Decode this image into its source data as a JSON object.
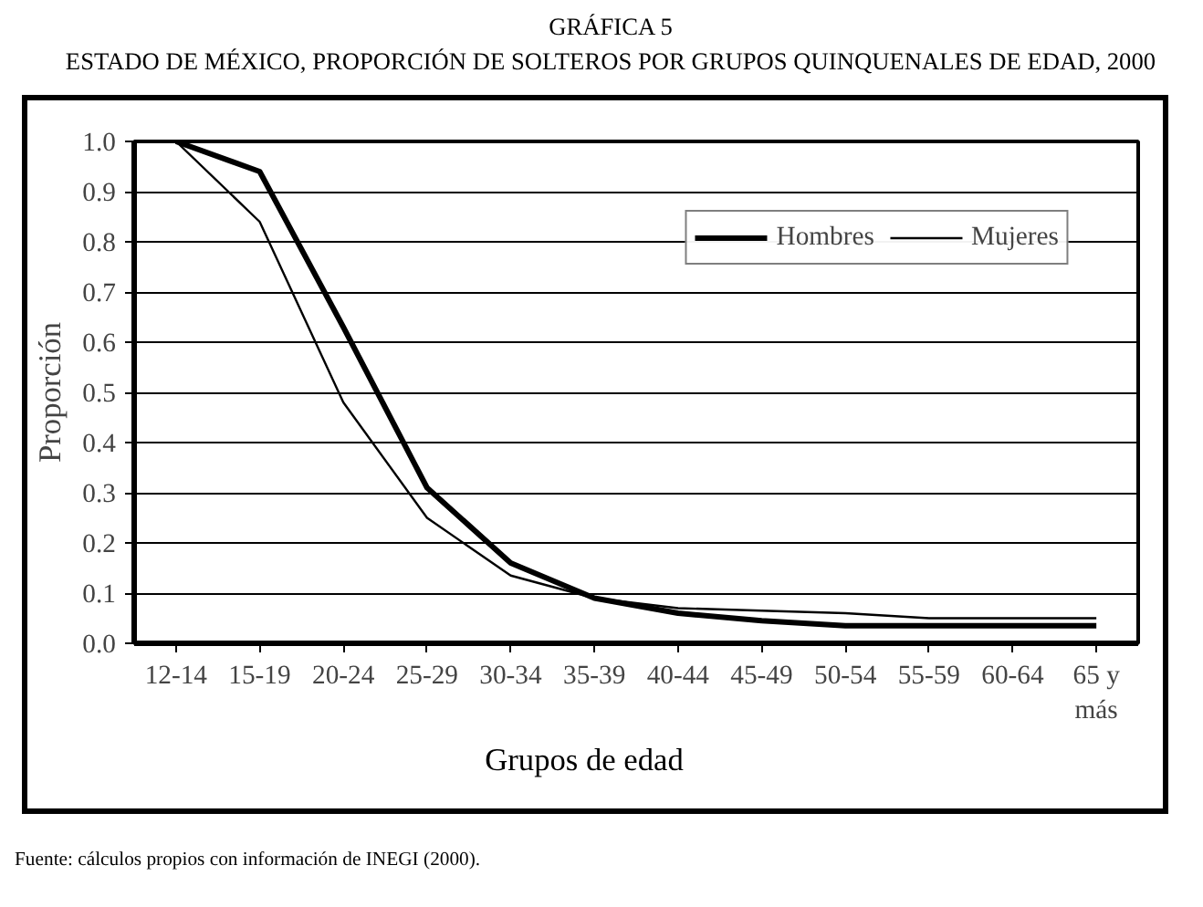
{
  "chart_data": {
    "type": "line",
    "title": "GRÁFICA 5",
    "subtitle": "ESTADO DE MÉXICO, PROPORCIÓN DE SOLTEROS POR GRUPOS QUINQUENALES DE EDAD, 2000",
    "xlabel": "Grupos de edad",
    "ylabel": "Proporción",
    "categories": [
      "12-14",
      "15-19",
      "20-24",
      "25-29",
      "30-34",
      "35-39",
      "40-44",
      "45-49",
      "50-54",
      "55-59",
      "60-64",
      "65 y\nmás"
    ],
    "series": [
      {
        "name": "Hombres",
        "color": "#000000",
        "values": [
          1.0,
          0.94,
          0.63,
          0.31,
          0.16,
          0.09,
          0.06,
          0.045,
          0.035,
          0.035,
          0.035,
          0.035
        ]
      },
      {
        "name": "Mujeres",
        "color": "#000000",
        "values": [
          1.0,
          0.84,
          0.48,
          0.25,
          0.135,
          0.09,
          0.07,
          0.065,
          0.06,
          0.05,
          0.05,
          0.05
        ]
      }
    ],
    "ylim": [
      0,
      1
    ],
    "yticks": [
      {
        "value": 0,
        "label": "0.0"
      },
      {
        "value": 0.1,
        "label": "0.1"
      },
      {
        "value": 0.2,
        "label": "0.2"
      },
      {
        "value": 0.3,
        "label": "0.3"
      },
      {
        "value": 0.4,
        "label": "0.4"
      },
      {
        "value": 0.5,
        "label": "0.5"
      },
      {
        "value": 0.6,
        "label": "0.6"
      },
      {
        "value": 0.7,
        "label": "0.7"
      },
      {
        "value": 0.8,
        "label": "0.8"
      },
      {
        "value": 0.9,
        "label": "0.9"
      },
      {
        "value": 1,
        "label": "1.0"
      }
    ],
    "grid": "y",
    "legend": "top right",
    "marker": "none",
    "line_style": "solid",
    "annotations": [
      "Fuente: cálculos propios con información de INEGI (2000)."
    ]
  }
}
